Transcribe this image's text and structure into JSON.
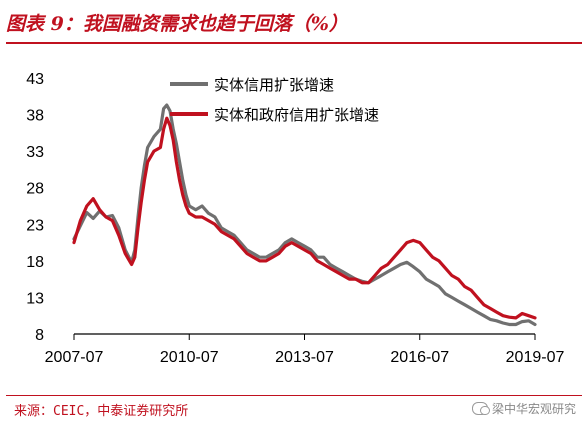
{
  "header": {
    "title": "图表 9：我国融资需求也趋于回落（%）"
  },
  "footer": {
    "source": "来源：CEIC，中泰证券研究所",
    "watermark": "梁中华宏观研究"
  },
  "colors": {
    "accent": "#c0111f",
    "series_gray": "#707070",
    "series_red": "#c0111f"
  },
  "chart_data": {
    "type": "line",
    "title": "",
    "xlabel": "",
    "ylabel": "",
    "xlim": [
      "2007-07",
      "2019-07"
    ],
    "ylim": [
      8,
      43
    ],
    "yticks": [
      8,
      13,
      18,
      23,
      28,
      33,
      38,
      43
    ],
    "xticks": [
      "2007-07",
      "2010-07",
      "2013-07",
      "2016-07",
      "2019-07"
    ],
    "grid": false,
    "legend_position": "top-center",
    "series": [
      {
        "name": "实体信用扩张增速",
        "color": "#707070",
        "points": [
          [
            "2007-07",
            21.0
          ],
          [
            "2007-09",
            22.8
          ],
          [
            "2007-11",
            24.6
          ],
          [
            "2008-01",
            23.8
          ],
          [
            "2008-03",
            24.8
          ],
          [
            "2008-05",
            24.0
          ],
          [
            "2008-07",
            24.2
          ],
          [
            "2008-09",
            22.5
          ],
          [
            "2008-11",
            19.5
          ],
          [
            "2009-01",
            17.8
          ],
          [
            "2009-02",
            19.5
          ],
          [
            "2009-03",
            24.0
          ],
          [
            "2009-04",
            28.0
          ],
          [
            "2009-05",
            31.0
          ],
          [
            "2009-06",
            33.5
          ],
          [
            "2009-08",
            35.0
          ],
          [
            "2009-10",
            36.0
          ],
          [
            "2009-11",
            38.8
          ],
          [
            "2009-12",
            39.3
          ],
          [
            "2010-01",
            38.5
          ],
          [
            "2010-02",
            36.0
          ],
          [
            "2010-03",
            34.0
          ],
          [
            "2010-04",
            31.5
          ],
          [
            "2010-05",
            29.0
          ],
          [
            "2010-06",
            27.0
          ],
          [
            "2010-07",
            25.5
          ],
          [
            "2010-09",
            25.0
          ],
          [
            "2010-11",
            25.5
          ],
          [
            "2011-01",
            24.5
          ],
          [
            "2011-03",
            24.0
          ],
          [
            "2011-05",
            22.5
          ],
          [
            "2011-07",
            22.0
          ],
          [
            "2011-09",
            21.5
          ],
          [
            "2011-11",
            20.5
          ],
          [
            "2012-01",
            19.5
          ],
          [
            "2012-03",
            19.0
          ],
          [
            "2012-05",
            18.5
          ],
          [
            "2012-07",
            18.5
          ],
          [
            "2012-09",
            19.0
          ],
          [
            "2012-11",
            19.5
          ],
          [
            "2013-01",
            20.5
          ],
          [
            "2013-03",
            21.0
          ],
          [
            "2013-05",
            20.5
          ],
          [
            "2013-07",
            20.0
          ],
          [
            "2013-09",
            19.5
          ],
          [
            "2013-11",
            18.5
          ],
          [
            "2014-01",
            18.5
          ],
          [
            "2014-03",
            17.5
          ],
          [
            "2014-05",
            17.0
          ],
          [
            "2014-07",
            16.5
          ],
          [
            "2014-09",
            16.0
          ],
          [
            "2014-11",
            15.5
          ],
          [
            "2015-01",
            15.2
          ],
          [
            "2015-03",
            15.0
          ],
          [
            "2015-05",
            15.5
          ],
          [
            "2015-07",
            16.0
          ],
          [
            "2015-09",
            16.5
          ],
          [
            "2015-11",
            17.0
          ],
          [
            "2016-01",
            17.5
          ],
          [
            "2016-03",
            17.8
          ],
          [
            "2016-05",
            17.2
          ],
          [
            "2016-07",
            16.5
          ],
          [
            "2016-09",
            15.5
          ],
          [
            "2016-11",
            15.0
          ],
          [
            "2017-01",
            14.5
          ],
          [
            "2017-03",
            13.5
          ],
          [
            "2017-05",
            13.0
          ],
          [
            "2017-07",
            12.5
          ],
          [
            "2017-09",
            12.0
          ],
          [
            "2017-11",
            11.5
          ],
          [
            "2018-01",
            11.0
          ],
          [
            "2018-03",
            10.5
          ],
          [
            "2018-05",
            10.0
          ],
          [
            "2018-07",
            9.8
          ],
          [
            "2018-09",
            9.5
          ],
          [
            "2018-11",
            9.3
          ],
          [
            "2019-01",
            9.3
          ],
          [
            "2019-03",
            9.7
          ],
          [
            "2019-05",
            9.8
          ],
          [
            "2019-07",
            9.3
          ]
        ]
      },
      {
        "name": "实体和政府信用扩张增速",
        "color": "#c0111f",
        "points": [
          [
            "2007-07",
            20.5
          ],
          [
            "2007-09",
            23.5
          ],
          [
            "2007-11",
            25.5
          ],
          [
            "2008-01",
            26.5
          ],
          [
            "2008-03",
            25.0
          ],
          [
            "2008-05",
            24.0
          ],
          [
            "2008-07",
            23.5
          ],
          [
            "2008-09",
            21.5
          ],
          [
            "2008-11",
            19.0
          ],
          [
            "2009-01",
            17.5
          ],
          [
            "2009-02",
            18.5
          ],
          [
            "2009-03",
            22.5
          ],
          [
            "2009-04",
            26.0
          ],
          [
            "2009-05",
            29.0
          ],
          [
            "2009-06",
            31.5
          ],
          [
            "2009-08",
            33.0
          ],
          [
            "2009-10",
            33.5
          ],
          [
            "2009-11",
            36.0
          ],
          [
            "2009-12",
            37.5
          ],
          [
            "2010-01",
            36.5
          ],
          [
            "2010-02",
            34.5
          ],
          [
            "2010-03",
            31.5
          ],
          [
            "2010-04",
            29.0
          ],
          [
            "2010-05",
            27.0
          ],
          [
            "2010-06",
            25.5
          ],
          [
            "2010-07",
            24.5
          ],
          [
            "2010-09",
            24.0
          ],
          [
            "2010-11",
            24.0
          ],
          [
            "2011-01",
            23.5
          ],
          [
            "2011-03",
            23.0
          ],
          [
            "2011-05",
            22.0
          ],
          [
            "2011-07",
            21.5
          ],
          [
            "2011-09",
            21.0
          ],
          [
            "2011-11",
            20.0
          ],
          [
            "2012-01",
            19.0
          ],
          [
            "2012-03",
            18.5
          ],
          [
            "2012-05",
            18.0
          ],
          [
            "2012-07",
            18.0
          ],
          [
            "2012-09",
            18.5
          ],
          [
            "2012-11",
            19.0
          ],
          [
            "2013-01",
            20.0
          ],
          [
            "2013-03",
            20.5
          ],
          [
            "2013-05",
            20.0
          ],
          [
            "2013-07",
            19.5
          ],
          [
            "2013-09",
            19.0
          ],
          [
            "2013-11",
            18.0
          ],
          [
            "2014-01",
            17.5
          ],
          [
            "2014-03",
            17.0
          ],
          [
            "2014-05",
            16.5
          ],
          [
            "2014-07",
            16.0
          ],
          [
            "2014-09",
            15.5
          ],
          [
            "2014-11",
            15.5
          ],
          [
            "2015-01",
            15.0
          ],
          [
            "2015-03",
            15.0
          ],
          [
            "2015-05",
            16.0
          ],
          [
            "2015-07",
            17.0
          ],
          [
            "2015-09",
            17.5
          ],
          [
            "2015-11",
            18.5
          ],
          [
            "2016-01",
            19.5
          ],
          [
            "2016-03",
            20.5
          ],
          [
            "2016-05",
            20.8
          ],
          [
            "2016-07",
            20.5
          ],
          [
            "2016-09",
            19.5
          ],
          [
            "2016-11",
            18.5
          ],
          [
            "2017-01",
            18.0
          ],
          [
            "2017-03",
            17.0
          ],
          [
            "2017-05",
            16.0
          ],
          [
            "2017-07",
            15.5
          ],
          [
            "2017-09",
            14.5
          ],
          [
            "2017-11",
            14.0
          ],
          [
            "2018-01",
            13.0
          ],
          [
            "2018-03",
            12.0
          ],
          [
            "2018-05",
            11.5
          ],
          [
            "2018-07",
            11.0
          ],
          [
            "2018-09",
            10.5
          ],
          [
            "2018-11",
            10.3
          ],
          [
            "2019-01",
            10.2
          ],
          [
            "2019-03",
            10.8
          ],
          [
            "2019-05",
            10.5
          ],
          [
            "2019-07",
            10.2
          ]
        ]
      }
    ]
  }
}
